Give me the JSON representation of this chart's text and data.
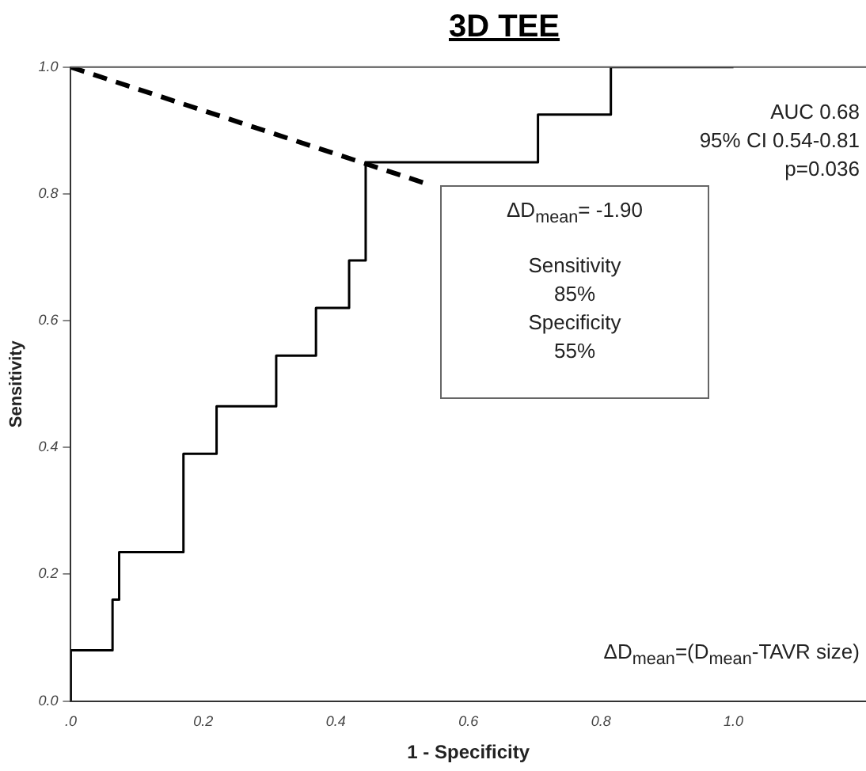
{
  "chart_data": {
    "type": "line",
    "title": "3D TEE",
    "xlabel": "1 - Specificity",
    "ylabel": "Sensitivity",
    "xlim": [
      0,
      1.2
    ],
    "xticks": [
      {
        "value": 0,
        "label": ".0"
      },
      0.2,
      0.4,
      0.6,
      0.8,
      {
        "value": 1,
        "label": "1.0"
      }
    ],
    "ylim": [
      0,
      1
    ],
    "yticks": [
      {
        "value": 0,
        "label": "0.0"
      },
      0.2,
      0.4,
      0.6,
      0.8,
      {
        "value": 1,
        "label": "1.0"
      }
    ],
    "grid": false,
    "legend": false,
    "marker": "none",
    "series": [
      {
        "color": "#000000",
        "line_style": "solid",
        "x": [
          0,
          0,
          0.063,
          0.063,
          0.073,
          0.073,
          0.17,
          0.17,
          0.22,
          0.22,
          0.31,
          0.31,
          0.37,
          0.37,
          0.42,
          0.42,
          0.445,
          0.445,
          0.705,
          0.705,
          0.815,
          0.815,
          1
        ],
        "values": [
          0,
          0.08,
          0.08,
          0.16,
          0.16,
          0.235,
          0.235,
          0.39,
          0.39,
          0.465,
          0.465,
          0.545,
          0.545,
          0.62,
          0.62,
          0.695,
          0.695,
          0.85,
          0.85,
          0.925,
          0.925,
          1,
          1
        ]
      },
      {
        "color": "#000000",
        "line_style": "dashed",
        "x": [
          0,
          0.54
        ],
        "values": [
          1,
          0.815
        ]
      }
    ],
    "annotations": [
      "AUC 0.68",
      "95% CI 0.54-0.81",
      "p=0.036",
      "ΔD$_{mean}$= -1.90",
      "Sensitivity",
      "85%",
      "Specificity",
      "55%",
      "ΔD$_{mean}$=(D$_{mean}$-TAVR size)"
    ]
  }
}
